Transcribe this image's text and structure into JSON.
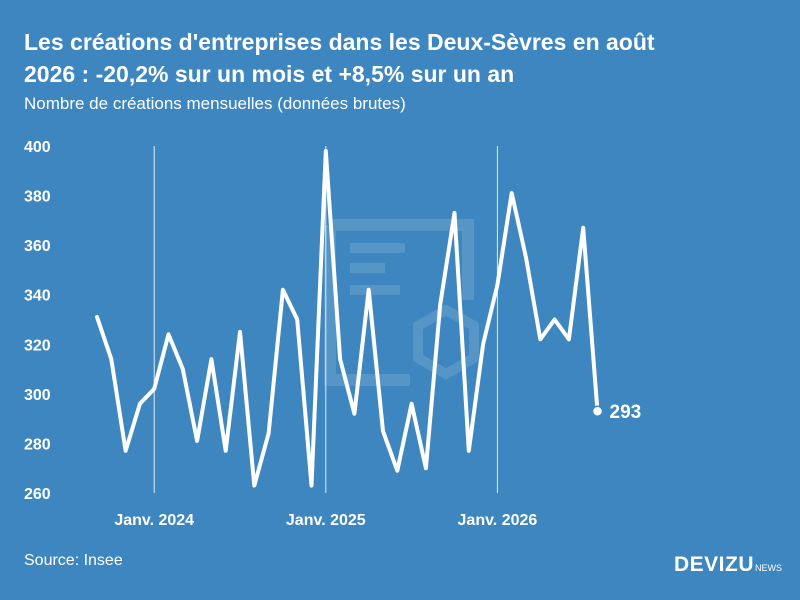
{
  "header": {
    "title_line1": "Les créations d'entreprises dans les Deux-Sèvres en août",
    "title_line2": "2026 : -20,2% sur un mois et +8,5% sur un an",
    "subtitle": "Nombre de créations mensuelles (données brutes)"
  },
  "footer": {
    "source": "Source: Insee",
    "brand": "DEVIZU",
    "brand_suffix": "NEWS"
  },
  "chart_data": {
    "type": "line",
    "title": "Les créations d'entreprises dans les Deux-Sèvres en août 2026 : -20,2% sur un mois et +8,5% sur un an",
    "ylabel": "",
    "xlabel": "",
    "ylim": [
      260,
      400
    ],
    "yticks": [
      260,
      280,
      300,
      320,
      340,
      360,
      380,
      400
    ],
    "x_start": "2023-09",
    "xtick_labels": [
      {
        "label": "Janv. 2024",
        "date": "2024-01"
      },
      {
        "label": "Janv. 2025",
        "date": "2025-01"
      },
      {
        "label": "Janv. 2026",
        "date": "2026-01"
      }
    ],
    "grid": {
      "vertical_at_xticks": true,
      "horizontal": false
    },
    "line_color": "#ffffff",
    "background_color": "#3d86bf",
    "series": [
      {
        "name": "",
        "dates": [
          "2023-09",
          "2023-10",
          "2023-11",
          "2023-12",
          "2024-01",
          "2024-02",
          "2024-03",
          "2024-04",
          "2024-05",
          "2024-06",
          "2024-07",
          "2024-08",
          "2024-09",
          "2024-10",
          "2024-11",
          "2024-12",
          "2025-01",
          "2025-02",
          "2025-03",
          "2025-04",
          "2025-05",
          "2025-06",
          "2025-07",
          "2025-08",
          "2025-09",
          "2025-10",
          "2025-11",
          "2025-12",
          "2026-01",
          "2026-02",
          "2026-03",
          "2026-04",
          "2026-05",
          "2026-06",
          "2026-07",
          "2026-08"
        ],
        "values": [
          331,
          314,
          277,
          296,
          302,
          324,
          310,
          281,
          314,
          277,
          325,
          263,
          284,
          342,
          330,
          263,
          398,
          314,
          292,
          342,
          285,
          269,
          296,
          270,
          336,
          373,
          277,
          320,
          344,
          381,
          355,
          322,
          330,
          322,
          367,
          293
        ]
      }
    ],
    "end_label": "293"
  }
}
